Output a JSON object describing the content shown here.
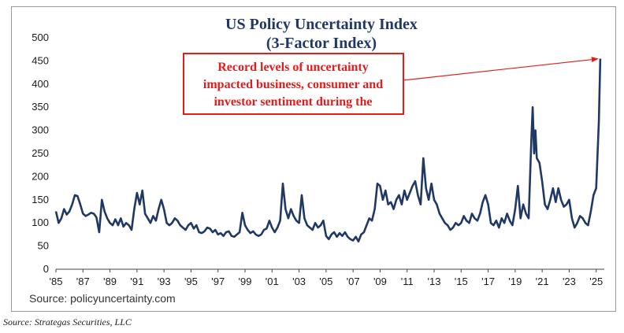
{
  "chart_data": {
    "type": "line",
    "title": "US Policy Uncertainty Index",
    "subtitle": "(3-Factor Index)",
    "ylim": [
      0,
      500
    ],
    "yticks": [
      "0",
      "50",
      "100",
      "150",
      "200",
      "250",
      "300",
      "350",
      "400",
      "450",
      "500"
    ],
    "xlim": [
      1985,
      2025.6
    ],
    "xticks": [
      "'85",
      "'87",
      "'89",
      "'91",
      "'93",
      "'95",
      "'97",
      "'99",
      "'01",
      "'03",
      "'05",
      "'07",
      "'09",
      "'11",
      "'13",
      "'15",
      "'17",
      "'19",
      "'21",
      "'23",
      "'25"
    ],
    "grid": false,
    "line_color": "#1f3864",
    "annotation": {
      "text_lines": [
        "Record levels of uncertainty",
        "impacted business, consumer and",
        "investor sentiment during the"
      ],
      "color": "#e11d1d",
      "points_to": [
        2025.3,
        455
      ]
    },
    "source_note": "Source: policyuncertainty.com",
    "series": [
      {
        "points": [
          [
            1985.0,
            125
          ],
          [
            1985.2,
            100
          ],
          [
            1985.4,
            110
          ],
          [
            1985.6,
            130
          ],
          [
            1985.8,
            118
          ],
          [
            1986.0,
            125
          ],
          [
            1986.2,
            140
          ],
          [
            1986.4,
            160
          ],
          [
            1986.6,
            158
          ],
          [
            1986.8,
            140
          ],
          [
            1987.0,
            120
          ],
          [
            1987.2,
            115
          ],
          [
            1987.4,
            118
          ],
          [
            1987.6,
            122
          ],
          [
            1987.8,
            120
          ],
          [
            1988.0,
            112
          ],
          [
            1988.2,
            80
          ],
          [
            1988.4,
            150
          ],
          [
            1988.6,
            125
          ],
          [
            1988.8,
            110
          ],
          [
            1989.0,
            100
          ],
          [
            1989.2,
            95
          ],
          [
            1989.4,
            108
          ],
          [
            1989.6,
            95
          ],
          [
            1989.8,
            110
          ],
          [
            1990.0,
            92
          ],
          [
            1990.2,
            100
          ],
          [
            1990.4,
            95
          ],
          [
            1990.6,
            85
          ],
          [
            1990.8,
            130
          ],
          [
            1991.0,
            165
          ],
          [
            1991.2,
            140
          ],
          [
            1991.4,
            170
          ],
          [
            1991.6,
            120
          ],
          [
            1991.8,
            110
          ],
          [
            1992.0,
            100
          ],
          [
            1992.2,
            115
          ],
          [
            1992.4,
            105
          ],
          [
            1992.6,
            130
          ],
          [
            1992.8,
            150
          ],
          [
            1993.0,
            130
          ],
          [
            1993.2,
            100
          ],
          [
            1993.4,
            95
          ],
          [
            1993.6,
            100
          ],
          [
            1993.8,
            110
          ],
          [
            1994.0,
            105
          ],
          [
            1994.2,
            95
          ],
          [
            1994.4,
            90
          ],
          [
            1994.6,
            85
          ],
          [
            1994.8,
            95
          ],
          [
            1995.0,
            100
          ],
          [
            1995.2,
            88
          ],
          [
            1995.4,
            95
          ],
          [
            1995.6,
            80
          ],
          [
            1995.8,
            78
          ],
          [
            1996.0,
            82
          ],
          [
            1996.2,
            90
          ],
          [
            1996.4,
            88
          ],
          [
            1996.6,
            80
          ],
          [
            1996.8,
            85
          ],
          [
            1997.0,
            75
          ],
          [
            1997.2,
            78
          ],
          [
            1997.4,
            72
          ],
          [
            1997.6,
            80
          ],
          [
            1997.8,
            82
          ],
          [
            1998.0,
            72
          ],
          [
            1998.2,
            70
          ],
          [
            1998.4,
            75
          ],
          [
            1998.6,
            80
          ],
          [
            1998.8,
            122
          ],
          [
            1999.0,
            95
          ],
          [
            1999.2,
            85
          ],
          [
            1999.4,
            78
          ],
          [
            1999.6,
            82
          ],
          [
            1999.8,
            75
          ],
          [
            2000.0,
            72
          ],
          [
            2000.2,
            75
          ],
          [
            2000.4,
            85
          ],
          [
            2000.6,
            88
          ],
          [
            2000.8,
            105
          ],
          [
            2001.0,
            90
          ],
          [
            2001.2,
            80
          ],
          [
            2001.4,
            90
          ],
          [
            2001.6,
            105
          ],
          [
            2001.8,
            185
          ],
          [
            2002.0,
            130
          ],
          [
            2002.2,
            110
          ],
          [
            2002.4,
            130
          ],
          [
            2002.6,
            115
          ],
          [
            2002.8,
            105
          ],
          [
            2003.0,
            100
          ],
          [
            2003.2,
            160
          ],
          [
            2003.4,
            110
          ],
          [
            2003.6,
            95
          ],
          [
            2003.8,
            90
          ],
          [
            2004.0,
            85
          ],
          [
            2004.2,
            100
          ],
          [
            2004.4,
            90
          ],
          [
            2004.6,
            95
          ],
          [
            2004.8,
            105
          ],
          [
            2005.0,
            72
          ],
          [
            2005.2,
            65
          ],
          [
            2005.4,
            75
          ],
          [
            2005.6,
            80
          ],
          [
            2005.8,
            70
          ],
          [
            2006.0,
            78
          ],
          [
            2006.2,
            72
          ],
          [
            2006.4,
            80
          ],
          [
            2006.6,
            70
          ],
          [
            2006.8,
            65
          ],
          [
            2007.0,
            62
          ],
          [
            2007.2,
            70
          ],
          [
            2007.4,
            60
          ],
          [
            2007.6,
            75
          ],
          [
            2007.8,
            80
          ],
          [
            2008.0,
            95
          ],
          [
            2008.2,
            110
          ],
          [
            2008.4,
            105
          ],
          [
            2008.6,
            130
          ],
          [
            2008.8,
            185
          ],
          [
            2009.0,
            180
          ],
          [
            2009.2,
            150
          ],
          [
            2009.4,
            170
          ],
          [
            2009.6,
            140
          ],
          [
            2009.8,
            145
          ],
          [
            2010.0,
            130
          ],
          [
            2010.2,
            150
          ],
          [
            2010.4,
            160
          ],
          [
            2010.6,
            140
          ],
          [
            2010.8,
            170
          ],
          [
            2011.0,
            150
          ],
          [
            2011.2,
            165
          ],
          [
            2011.4,
            180
          ],
          [
            2011.6,
            190
          ],
          [
            2011.8,
            160
          ],
          [
            2012.0,
            140
          ],
          [
            2012.2,
            240
          ],
          [
            2012.4,
            175
          ],
          [
            2012.6,
            150
          ],
          [
            2012.8,
            185
          ],
          [
            2013.0,
            150
          ],
          [
            2013.2,
            140
          ],
          [
            2013.4,
            120
          ],
          [
            2013.6,
            110
          ],
          [
            2013.8,
            100
          ],
          [
            2014.0,
            95
          ],
          [
            2014.2,
            85
          ],
          [
            2014.4,
            90
          ],
          [
            2014.6,
            100
          ],
          [
            2014.8,
            95
          ],
          [
            2015.0,
            100
          ],
          [
            2015.2,
            115
          ],
          [
            2015.4,
            105
          ],
          [
            2015.6,
            100
          ],
          [
            2015.8,
            120
          ],
          [
            2016.0,
            110
          ],
          [
            2016.2,
            105
          ],
          [
            2016.4,
            120
          ],
          [
            2016.6,
            145
          ],
          [
            2016.8,
            160
          ],
          [
            2017.0,
            140
          ],
          [
            2017.2,
            100
          ],
          [
            2017.4,
            95
          ],
          [
            2017.6,
            105
          ],
          [
            2017.8,
            90
          ],
          [
            2018.0,
            110
          ],
          [
            2018.2,
            100
          ],
          [
            2018.4,
            120
          ],
          [
            2018.6,
            105
          ],
          [
            2018.8,
            95
          ],
          [
            2019.0,
            130
          ],
          [
            2019.2,
            180
          ],
          [
            2019.4,
            110
          ],
          [
            2019.6,
            140
          ],
          [
            2019.8,
            120
          ],
          [
            2020.0,
            110
          ],
          [
            2020.2,
            280
          ],
          [
            2020.3,
            350
          ],
          [
            2020.4,
            250
          ],
          [
            2020.5,
            300
          ],
          [
            2020.6,
            240
          ],
          [
            2020.8,
            230
          ],
          [
            2021.0,
            190
          ],
          [
            2021.2,
            140
          ],
          [
            2021.4,
            130
          ],
          [
            2021.6,
            150
          ],
          [
            2021.8,
            175
          ],
          [
            2022.0,
            145
          ],
          [
            2022.2,
            175
          ],
          [
            2022.4,
            150
          ],
          [
            2022.6,
            135
          ],
          [
            2022.8,
            140
          ],
          [
            2023.0,
            150
          ],
          [
            2023.2,
            110
          ],
          [
            2023.4,
            90
          ],
          [
            2023.6,
            100
          ],
          [
            2023.8,
            115
          ],
          [
            2024.0,
            110
          ],
          [
            2024.2,
            100
          ],
          [
            2024.4,
            95
          ],
          [
            2024.6,
            125
          ],
          [
            2024.8,
            160
          ],
          [
            2025.0,
            175
          ],
          [
            2025.2,
            320
          ],
          [
            2025.3,
            455
          ]
        ]
      }
    ]
  },
  "footer": {
    "source": "Source: Strategas Securities, LLC"
  }
}
